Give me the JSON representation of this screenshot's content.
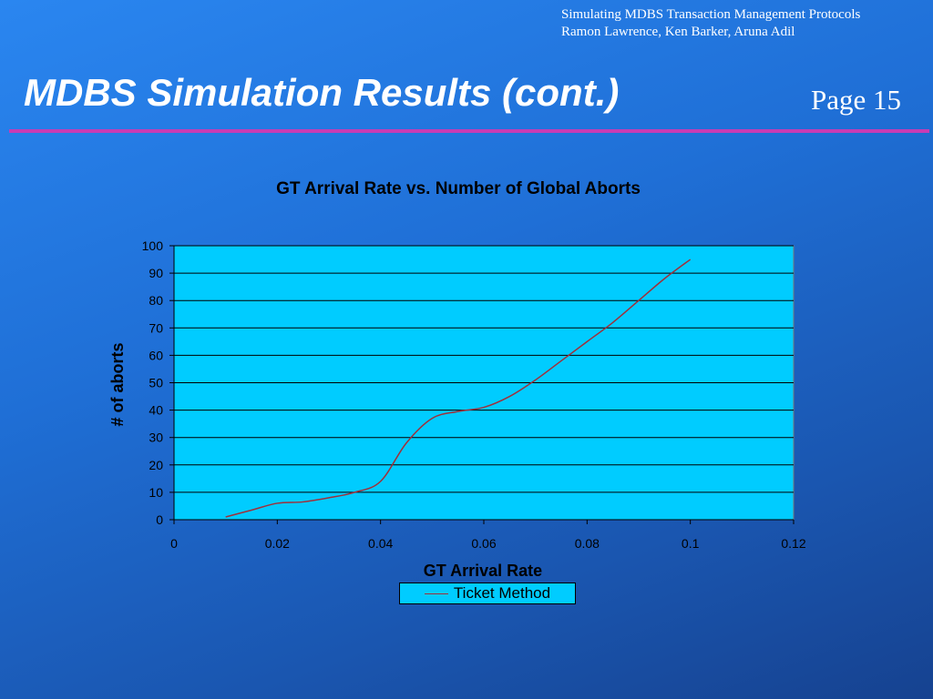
{
  "header": {
    "line1": "Simulating MDBS Transaction Management Protocols",
    "line2": "Ramon Lawrence, Ken Barker, Aruna Adil",
    "title": "MDBS Simulation Results (cont.)",
    "page": "Page 15"
  },
  "colors": {
    "plot_bg": "#00ccff",
    "series_line": "#a0303a",
    "accent_rule": "#c83cb4"
  },
  "chart_data": {
    "type": "line",
    "title": "GT Arrival Rate vs. Number of Global Aborts",
    "xlabel": "GT Arrival Rate",
    "ylabel": "# of aborts",
    "xlim": [
      0,
      0.12
    ],
    "ylim": [
      0,
      100
    ],
    "xticks": [
      "0",
      "0.02",
      "0.04",
      "0.06",
      "0.08",
      "0.1",
      "0.12"
    ],
    "yticks": [
      "0",
      "10",
      "20",
      "30",
      "40",
      "50",
      "60",
      "70",
      "80",
      "90",
      "100"
    ],
    "grid": true,
    "legend_position": "bottom",
    "series": [
      {
        "name": "Ticket Method",
        "x": [
          0.01,
          0.015,
          0.02,
          0.025,
          0.03,
          0.035,
          0.04,
          0.045,
          0.05,
          0.055,
          0.06,
          0.065,
          0.07,
          0.075,
          0.08,
          0.085,
          0.09,
          0.095,
          0.1
        ],
        "y": [
          1,
          3.5,
          6,
          6.5,
          8,
          10,
          14,
          28,
          37,
          39.5,
          41,
          45,
          51,
          58,
          65,
          72,
          80,
          88,
          95
        ]
      }
    ]
  }
}
